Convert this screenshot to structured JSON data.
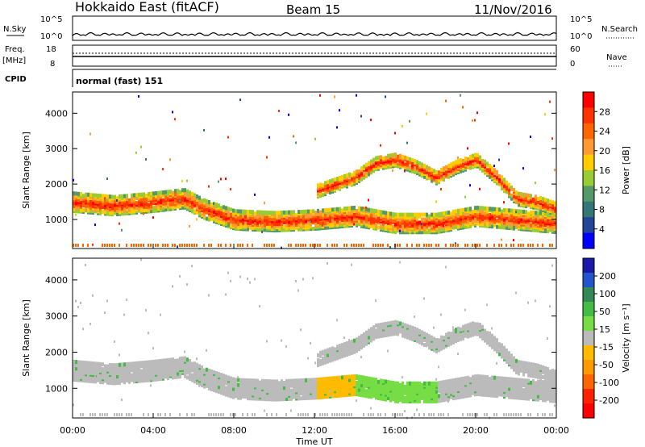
{
  "header": {
    "station": "Hokkaido East (fitACF)",
    "beam": "Beam 15",
    "date": "11/Nov/2016"
  },
  "strips": {
    "nsky_label": "N.Sky",
    "nsky_ticks": [
      "10^5",
      "10^0"
    ],
    "nsearch_label": "N.Search",
    "nsearch_ticks": [
      "10^5",
      "10^0"
    ],
    "freq_label": "Freq.",
    "freq_unit": "[MHz]",
    "freq_ticks": [
      "18",
      "8"
    ],
    "nave_label": "Nave",
    "nave_ticks": [
      "60",
      "0"
    ],
    "cpid_label": "CPID",
    "cpid_value": "normal (fast) 151"
  },
  "chart_data": [
    {
      "type": "heatmap",
      "name": "power",
      "ylabel": "Slant Range [km]",
      "yticks": [
        1000,
        2000,
        3000,
        4000
      ],
      "ylim": [
        180,
        4600
      ],
      "xlim_hours": [
        0,
        24
      ],
      "colorbar_label": "Power [dB]",
      "colorbar_ticks": [
        "28",
        "24",
        "20",
        "16",
        "12",
        "8",
        "4"
      ],
      "colorbar_colors": [
        "#ff0000",
        "#ff3300",
        "#ff6600",
        "#ff9933",
        "#ffcc00",
        "#99cc33",
        "#559966",
        "#337777",
        "#224499",
        "#0000ff"
      ],
      "bands": [
        {
          "desc": "main echo",
          "points": [
            [
              0,
              1500
            ],
            [
              2,
              1400
            ],
            [
              4,
              1500
            ],
            [
              5.5,
              1600
            ],
            [
              6.5,
              1300
            ],
            [
              8,
              1000
            ],
            [
              10,
              950
            ],
            [
              12,
              1000
            ],
            [
              14,
              1100
            ],
            [
              16,
              900
            ],
            [
              18,
              900
            ],
            [
              20,
              1100
            ],
            [
              22,
              1000
            ],
            [
              24,
              900
            ]
          ],
          "level": 0.85
        },
        {
          "desc": "upper echo",
          "points": [
            [
              12,
              1800
            ],
            [
              13,
              2000
            ],
            [
              14,
              2200
            ],
            [
              15,
              2600
            ],
            [
              16,
              2700
            ],
            [
              17,
              2500
            ],
            [
              18,
              2200
            ],
            [
              19,
              2500
            ],
            [
              20,
              2700
            ],
            [
              21,
              2200
            ],
            [
              22,
              1600
            ],
            [
              23,
              1500
            ],
            [
              24,
              1300
            ]
          ],
          "level": 0.75
        }
      ]
    },
    {
      "type": "heatmap",
      "name": "velocity",
      "ylabel": "Slant Range [km]",
      "yticks": [
        1000,
        2000,
        3000,
        4000
      ],
      "ylim": [
        180,
        4600
      ],
      "xlim_hours": [
        0,
        24
      ],
      "xticks": [
        "00:00",
        "04:00",
        "08:00",
        "12:00",
        "16:00",
        "20:00",
        "00:00"
      ],
      "xlabel": "Time UT",
      "colorbar_label": "Velocity [m s⁻¹]",
      "colorbar_ticks": [
        "200",
        "100",
        "50",
        "15",
        "-15",
        "-50",
        "-100",
        "-200"
      ],
      "colorbar_colors": [
        "#1a1aaa",
        "#2255cc",
        "#338855",
        "#44bb44",
        "#77dd44",
        "#bbbbbb",
        "#ffbb00",
        "#ff9900",
        "#ff6600",
        "#ff2200",
        "#ff0000"
      ]
    }
  ]
}
